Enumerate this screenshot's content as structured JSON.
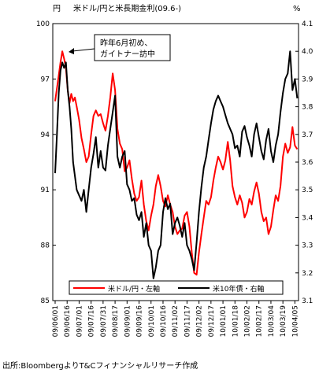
{
  "chart_data": {
    "type": "line",
    "title": "米ドル/円と米長期金利(09.6-)",
    "y_left_unit": "円",
    "y_right_unit": "%",
    "y_left_lim": [
      85,
      100
    ],
    "y_left_ticks": [
      85,
      88,
      91,
      94,
      97,
      100
    ],
    "y_right_lim": [
      3.1,
      4.1
    ],
    "y_right_ticks": [
      "3.1",
      "3.2",
      "3.3",
      "3.4",
      "3.5",
      "3.6",
      "3.7",
      "3.8",
      "3.9",
      "4.0",
      "4.1"
    ],
    "x_labels": [
      "09/06/01",
      "09/06/16",
      "09/07/01",
      "09/07/16",
      "09/07/31",
      "09/08/17",
      "09/09/01",
      "09/09/16",
      "09/10/01",
      "09/10/16",
      "09/11/02",
      "09/11/17",
      "09/12/02",
      "09/12/17",
      "10/01/01",
      "10/01/18",
      "10/02/02",
      "10/02/17",
      "10/03/04",
      "10/03/19",
      "10/04/05"
    ],
    "annotation": "昨年6月初め、\nガイトナー訪中",
    "legend_position": "bottom",
    "series": [
      {
        "name": "米ドル/円・左軸",
        "axis": "left",
        "color": "#ff0000",
        "points": [
          [
            0,
            95.8
          ],
          [
            0.15,
            96.5
          ],
          [
            0.3,
            97.2
          ],
          [
            0.45,
            97.9
          ],
          [
            0.6,
            98.5
          ],
          [
            0.75,
            98.1
          ],
          [
            0.9,
            97.6
          ],
          [
            1.05,
            96.4
          ],
          [
            1.2,
            95.7
          ],
          [
            1.35,
            96.2
          ],
          [
            1.5,
            95.8
          ],
          [
            1.65,
            96.0
          ],
          [
            1.8,
            95.5
          ],
          [
            2.0,
            94.8
          ],
          [
            2.2,
            93.8
          ],
          [
            2.4,
            93.2
          ],
          [
            2.6,
            92.5
          ],
          [
            2.8,
            92.8
          ],
          [
            3.0,
            94.0
          ],
          [
            3.2,
            95.0
          ],
          [
            3.4,
            95.3
          ],
          [
            3.6,
            95.0
          ],
          [
            3.8,
            95.1
          ],
          [
            4.0,
            94.6
          ],
          [
            4.2,
            94.2
          ],
          [
            4.4,
            95.0
          ],
          [
            4.6,
            96.0
          ],
          [
            4.8,
            97.3
          ],
          [
            5.0,
            96.4
          ],
          [
            5.2,
            94.3
          ],
          [
            5.4,
            93.5
          ],
          [
            5.6,
            93.2
          ],
          [
            5.8,
            92.0
          ],
          [
            6.0,
            92.2
          ],
          [
            6.2,
            92.6
          ],
          [
            6.4,
            91.6
          ],
          [
            6.6,
            90.8
          ],
          [
            6.8,
            90.4
          ],
          [
            7.0,
            90.6
          ],
          [
            7.2,
            91.5
          ],
          [
            7.4,
            90.2
          ],
          [
            7.6,
            89.3
          ],
          [
            7.8,
            88.8
          ],
          [
            8.0,
            89.6
          ],
          [
            8.2,
            90.2
          ],
          [
            8.4,
            91.2
          ],
          [
            8.6,
            91.8
          ],
          [
            8.8,
            91.2
          ],
          [
            9.0,
            90.4
          ],
          [
            9.2,
            90.1
          ],
          [
            9.4,
            90.7
          ],
          [
            9.6,
            90.2
          ],
          [
            9.8,
            89.8
          ],
          [
            10.0,
            89.0
          ],
          [
            10.2,
            88.6
          ],
          [
            10.4,
            88.8
          ],
          [
            10.6,
            88.9
          ],
          [
            10.8,
            89.6
          ],
          [
            11.0,
            89.8
          ],
          [
            11.2,
            89.0
          ],
          [
            11.4,
            87.6
          ],
          [
            11.6,
            86.5
          ],
          [
            11.8,
            86.4
          ],
          [
            12.0,
            87.6
          ],
          [
            12.2,
            88.6
          ],
          [
            12.4,
            89.5
          ],
          [
            12.6,
            90.4
          ],
          [
            12.8,
            90.2
          ],
          [
            13.0,
            90.6
          ],
          [
            13.2,
            91.5
          ],
          [
            13.4,
            92.2
          ],
          [
            13.6,
            92.8
          ],
          [
            13.8,
            92.5
          ],
          [
            14.0,
            92.1
          ],
          [
            14.2,
            92.6
          ],
          [
            14.4,
            93.6
          ],
          [
            14.6,
            92.6
          ],
          [
            14.8,
            91.2
          ],
          [
            15.0,
            90.6
          ],
          [
            15.2,
            90.2
          ],
          [
            15.4,
            90.7
          ],
          [
            15.6,
            90.3
          ],
          [
            15.8,
            89.5
          ],
          [
            16.0,
            89.8
          ],
          [
            16.2,
            90.5
          ],
          [
            16.4,
            90.2
          ],
          [
            16.6,
            90.9
          ],
          [
            16.8,
            91.4
          ],
          [
            17.0,
            90.8
          ],
          [
            17.2,
            89.8
          ],
          [
            17.4,
            89.3
          ],
          [
            17.6,
            89.5
          ],
          [
            17.8,
            88.6
          ],
          [
            18.0,
            89.0
          ],
          [
            18.2,
            89.9
          ],
          [
            18.4,
            90.7
          ],
          [
            18.6,
            90.4
          ],
          [
            18.8,
            91.2
          ],
          [
            19.0,
            92.8
          ],
          [
            19.2,
            93.5
          ],
          [
            19.4,
            93.0
          ],
          [
            19.6,
            93.3
          ],
          [
            19.8,
            94.4
          ],
          [
            20.0,
            93.4
          ],
          [
            20.2,
            93.2
          ]
        ]
      },
      {
        "name": "米10年債・右軸",
        "axis": "right",
        "color": "#000000",
        "points": [
          [
            0,
            3.56
          ],
          [
            0.15,
            3.7
          ],
          [
            0.3,
            3.85
          ],
          [
            0.45,
            3.93
          ],
          [
            0.6,
            3.96
          ],
          [
            0.75,
            3.94
          ],
          [
            0.9,
            3.96
          ],
          [
            1.05,
            3.86
          ],
          [
            1.2,
            3.8
          ],
          [
            1.35,
            3.72
          ],
          [
            1.5,
            3.6
          ],
          [
            1.65,
            3.55
          ],
          [
            1.8,
            3.5
          ],
          [
            2.0,
            3.48
          ],
          [
            2.2,
            3.46
          ],
          [
            2.4,
            3.5
          ],
          [
            2.6,
            3.42
          ],
          [
            2.8,
            3.5
          ],
          [
            3.0,
            3.58
          ],
          [
            3.2,
            3.63
          ],
          [
            3.4,
            3.69
          ],
          [
            3.6,
            3.58
          ],
          [
            3.8,
            3.64
          ],
          [
            4.0,
            3.58
          ],
          [
            4.2,
            3.57
          ],
          [
            4.4,
            3.66
          ],
          [
            4.6,
            3.72
          ],
          [
            4.8,
            3.78
          ],
          [
            5.0,
            3.84
          ],
          [
            5.2,
            3.62
          ],
          [
            5.4,
            3.58
          ],
          [
            5.6,
            3.62
          ],
          [
            5.8,
            3.64
          ],
          [
            6.0,
            3.52
          ],
          [
            6.2,
            3.5
          ],
          [
            6.4,
            3.46
          ],
          [
            6.6,
            3.47
          ],
          [
            6.8,
            3.41
          ],
          [
            7.0,
            3.39
          ],
          [
            7.2,
            3.42
          ],
          [
            7.4,
            3.33
          ],
          [
            7.6,
            3.38
          ],
          [
            7.8,
            3.3
          ],
          [
            8.0,
            3.28
          ],
          [
            8.2,
            3.18
          ],
          [
            8.4,
            3.22
          ],
          [
            8.6,
            3.28
          ],
          [
            8.8,
            3.3
          ],
          [
            9.0,
            3.42
          ],
          [
            9.2,
            3.47
          ],
          [
            9.4,
            3.43
          ],
          [
            9.6,
            3.45
          ],
          [
            9.8,
            3.34
          ],
          [
            10.0,
            3.38
          ],
          [
            10.2,
            3.4
          ],
          [
            10.4,
            3.37
          ],
          [
            10.6,
            3.33
          ],
          [
            10.8,
            3.38
          ],
          [
            11.0,
            3.3
          ],
          [
            11.2,
            3.28
          ],
          [
            11.4,
            3.25
          ],
          [
            11.6,
            3.21
          ],
          [
            11.8,
            3.31
          ],
          [
            12.0,
            3.42
          ],
          [
            12.2,
            3.51
          ],
          [
            12.4,
            3.58
          ],
          [
            12.6,
            3.62
          ],
          [
            12.8,
            3.68
          ],
          [
            13.0,
            3.74
          ],
          [
            13.2,
            3.79
          ],
          [
            13.4,
            3.82
          ],
          [
            13.6,
            3.84
          ],
          [
            13.8,
            3.82
          ],
          [
            14.0,
            3.8
          ],
          [
            14.2,
            3.77
          ],
          [
            14.4,
            3.74
          ],
          [
            14.6,
            3.72
          ],
          [
            14.8,
            3.7
          ],
          [
            15.0,
            3.65
          ],
          [
            15.2,
            3.66
          ],
          [
            15.4,
            3.62
          ],
          [
            15.6,
            3.71
          ],
          [
            15.8,
            3.73
          ],
          [
            16.0,
            3.69
          ],
          [
            16.2,
            3.66
          ],
          [
            16.4,
            3.62
          ],
          [
            16.6,
            3.7
          ],
          [
            16.8,
            3.74
          ],
          [
            17.0,
            3.69
          ],
          [
            17.2,
            3.64
          ],
          [
            17.4,
            3.61
          ],
          [
            17.6,
            3.68
          ],
          [
            17.8,
            3.72
          ],
          [
            18.0,
            3.64
          ],
          [
            18.2,
            3.6
          ],
          [
            18.4,
            3.66
          ],
          [
            18.6,
            3.7
          ],
          [
            18.8,
            3.78
          ],
          [
            19.0,
            3.85
          ],
          [
            19.2,
            3.9
          ],
          [
            19.4,
            3.92
          ],
          [
            19.6,
            4.0
          ],
          [
            19.8,
            3.86
          ],
          [
            20.0,
            3.9
          ],
          [
            20.2,
            3.83
          ]
        ]
      }
    ]
  },
  "source_note": "出所:BloombergよりT&Cフィナンシャルリサーチ作成"
}
